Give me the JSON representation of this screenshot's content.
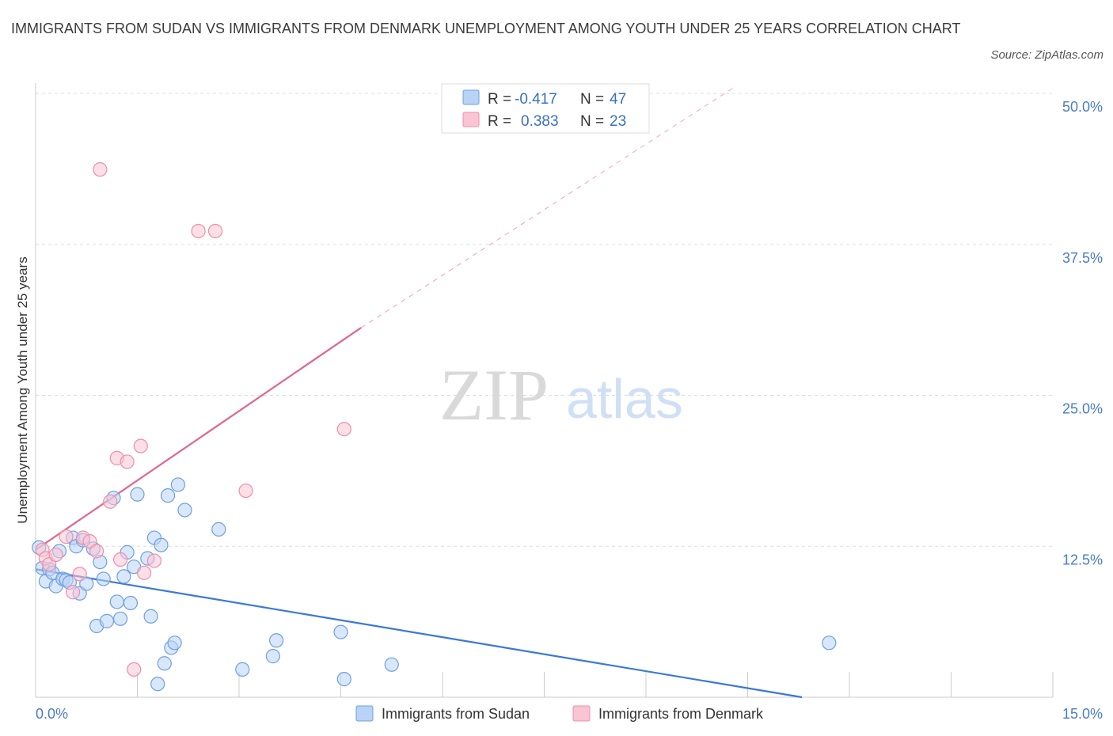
{
  "title": "IMMIGRANTS FROM SUDAN VS IMMIGRANTS FROM DENMARK UNEMPLOYMENT AMONG YOUTH UNDER 25 YEARS CORRELATION CHART",
  "source": "Source: ZipAtlas.com",
  "watermark": {
    "zip": "ZIP",
    "atlas": "atlas"
  },
  "colors": {
    "sudan_fill": "#b8d3f5",
    "sudan_stroke": "#6f9fe0",
    "sudan_line": "#3a78d6",
    "denmark_fill": "#f9c4d4",
    "denmark_stroke": "#ec8fab",
    "denmark_line": "#e06690",
    "tick_text": "#4a7cc9",
    "grid": "#dddddd"
  },
  "legend": {
    "rows": [
      {
        "r_label": "R =",
        "r_value": "-0.417",
        "n_label": "N =",
        "n_value": "47"
      },
      {
        "r_label": "R =",
        "r_value": "0.383",
        "n_label": "N =",
        "n_value": "23"
      }
    ]
  },
  "bottom_legend": [
    "Immigrants from Sudan",
    "Immigrants from Denmark"
  ],
  "chart_data": {
    "type": "scatter",
    "xlabel": "",
    "ylabel": "Unemployment Among Youth under 25 years",
    "xlim": [
      0,
      15
    ],
    "ylim": [
      0,
      50
    ],
    "x_tick_labels": [
      "0.0%",
      "15.0%"
    ],
    "y_ticks": [
      12.5,
      25.0,
      37.5,
      50.0
    ],
    "y_tick_labels": [
      "12.5%",
      "25.0%",
      "37.5%",
      "50.0%"
    ],
    "grid": true,
    "series": [
      {
        "name": "Immigrants from Sudan",
        "points": [
          [
            0.05,
            12.4
          ],
          [
            0.1,
            10.7
          ],
          [
            0.15,
            9.6
          ],
          [
            0.2,
            10.6
          ],
          [
            0.25,
            10.3
          ],
          [
            0.3,
            9.2
          ],
          [
            0.35,
            12.1
          ],
          [
            0.4,
            9.8
          ],
          [
            0.45,
            9.7
          ],
          [
            0.5,
            9.5
          ],
          [
            0.55,
            13.2
          ],
          [
            0.6,
            12.5
          ],
          [
            0.65,
            8.6
          ],
          [
            0.7,
            13.0
          ],
          [
            0.75,
            9.4
          ],
          [
            0.85,
            12.3
          ],
          [
            0.9,
            5.9
          ],
          [
            0.95,
            11.2
          ],
          [
            1.0,
            9.8
          ],
          [
            1.05,
            6.3
          ],
          [
            1.15,
            16.5
          ],
          [
            1.2,
            7.9
          ],
          [
            1.25,
            6.5
          ],
          [
            1.3,
            10.0
          ],
          [
            1.35,
            12.0
          ],
          [
            1.4,
            7.8
          ],
          [
            1.45,
            10.8
          ],
          [
            1.5,
            16.8
          ],
          [
            1.65,
            11.5
          ],
          [
            1.7,
            6.7
          ],
          [
            1.75,
            13.2
          ],
          [
            1.8,
            1.1
          ],
          [
            1.85,
            12.6
          ],
          [
            1.9,
            2.8
          ],
          [
            1.95,
            16.7
          ],
          [
            2.0,
            4.1
          ],
          [
            2.05,
            4.5
          ],
          [
            2.1,
            17.6
          ],
          [
            2.2,
            15.5
          ],
          [
            2.7,
            13.9
          ],
          [
            3.05,
            2.3
          ],
          [
            3.5,
            3.4
          ],
          [
            3.55,
            4.7
          ],
          [
            4.5,
            5.4
          ],
          [
            4.55,
            1.5
          ],
          [
            5.25,
            2.7
          ],
          [
            11.7,
            4.5
          ]
        ]
      },
      {
        "name": "Immigrants from Denmark",
        "points": [
          [
            0.1,
            12.2
          ],
          [
            0.15,
            11.5
          ],
          [
            0.2,
            11.0
          ],
          [
            0.3,
            11.8
          ],
          [
            0.45,
            13.3
          ],
          [
            0.55,
            8.7
          ],
          [
            0.65,
            10.2
          ],
          [
            0.7,
            13.2
          ],
          [
            0.8,
            12.9
          ],
          [
            0.9,
            12.1
          ],
          [
            0.95,
            43.7
          ],
          [
            1.1,
            16.2
          ],
          [
            1.2,
            19.8
          ],
          [
            1.25,
            11.4
          ],
          [
            1.35,
            19.5
          ],
          [
            1.45,
            2.3
          ],
          [
            1.55,
            20.8
          ],
          [
            1.6,
            10.3
          ],
          [
            1.75,
            11.3
          ],
          [
            2.4,
            38.6
          ],
          [
            2.65,
            38.6
          ],
          [
            3.1,
            17.1
          ],
          [
            4.55,
            22.2
          ]
        ]
      }
    ],
    "trend_lines": [
      {
        "series": "Immigrants from Sudan",
        "x": [
          0,
          11.3
        ],
        "y": [
          10.6,
          0
        ]
      },
      {
        "series": "Immigrants from Denmark",
        "x": [
          0,
          4.8
        ],
        "y": [
          12.2,
          30.6
        ],
        "dashed_extension_to": [
          10.3,
          50.5
        ]
      }
    ]
  }
}
